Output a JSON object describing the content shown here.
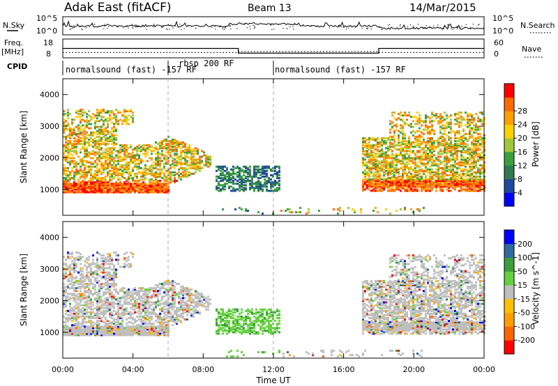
{
  "header": {
    "radar": "Adak East (fitACF)",
    "beam": "Beam 13",
    "date": "14/Mar/2015"
  },
  "top_panels": {
    "nsky_label": "N.Sky",
    "nsearch_label": "N.Search",
    "nsky_ticks": [
      "10^5",
      "10^0"
    ],
    "nsearch_ticks": [
      "10^5",
      "10^0"
    ],
    "freq_label": "Freq.",
    "freq_unit": "[MHz]",
    "freq_ticks": [
      "18",
      "8"
    ],
    "nave_label": "Nave",
    "nave_ticks": [
      "60",
      "0"
    ],
    "cpid_label": "CPID",
    "cpid_segments": [
      {
        "label": "normalsound (fast) -157 RF"
      },
      {
        "label": "rbsp 200 RF"
      },
      {
        "label": "normalsound (fast) -157 RF"
      }
    ],
    "freq_steps": [
      {
        "t0": 0,
        "t1": 10,
        "mhz": 13.0
      },
      {
        "t0": 10,
        "t1": 18,
        "mhz": 10.5
      },
      {
        "t0": 18,
        "t1": 24,
        "mhz": 13.0
      }
    ],
    "nave_steps": [
      {
        "t0": 0,
        "t1": 10,
        "nave": 17
      },
      {
        "t0": 10,
        "t1": 18,
        "nave": 20
      },
      {
        "t0": 18,
        "t1": 24,
        "nave": 17
      }
    ]
  },
  "colors": {
    "power": [
      "#0000ff",
      "#1f48a0",
      "#2f7a52",
      "#3aa040",
      "#a0c83a",
      "#ffd000",
      "#ff9e00",
      "#ff6a00",
      "#ff0000"
    ],
    "velocity": [
      "#ff0000",
      "#ff6400",
      "#ff9e00",
      "#ffc000",
      "#bfbfbf",
      "#64d23c",
      "#3a9e3a",
      "#2f6aa0",
      "#0000ff"
    ]
  },
  "chart_data": [
    {
      "type": "heatmap",
      "name": "power",
      "ylabel": "Slant Range [km]",
      "xlabel": "",
      "colorbar_label": "Power [dB]",
      "colorbar_ticks": [
        "4",
        "8",
        "12",
        "16",
        "20",
        "24",
        "28"
      ],
      "ylim": [
        180,
        4500
      ],
      "y_ticks": [
        "1000",
        "2000",
        "3000",
        "4000"
      ],
      "y_tick_values": [
        1000,
        2000,
        3000,
        4000
      ],
      "xlim": [
        0,
        24
      ],
      "x_tick_values": [
        0,
        4,
        8,
        12,
        16,
        20,
        24
      ]
    },
    {
      "type": "heatmap",
      "name": "velocity",
      "ylabel": "Slant Range [km]",
      "xlabel": "Time UT",
      "colorbar_label": "Velocity [m s^-1]",
      "colorbar_ticks": [
        "-200",
        "-100",
        "-50",
        "-15",
        "15",
        "50",
        "100",
        "200"
      ],
      "ylim": [
        180,
        4500
      ],
      "y_ticks": [
        "1000",
        "2000",
        "3000",
        "4000"
      ],
      "y_tick_values": [
        1000,
        2000,
        3000,
        4000
      ],
      "xlim": [
        0,
        24
      ],
      "x_ticks": [
        "00:00",
        "04:00",
        "08:00",
        "12:00",
        "16:00",
        "20:00",
        "00:00"
      ],
      "x_tick_values": [
        0,
        4,
        8,
        12,
        16,
        20,
        24
      ]
    }
  ]
}
